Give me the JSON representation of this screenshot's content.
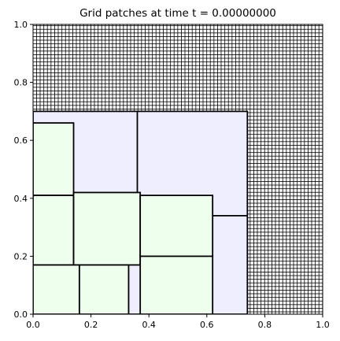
{
  "chart_data": {
    "type": "patch-grid",
    "title": "Grid patches at time t =     0.00000000",
    "xlim": [
      0,
      1
    ],
    "ylim": [
      0,
      1
    ],
    "xticks": [
      "0.0",
      "0.2",
      "0.4",
      "0.6",
      "0.8",
      "1.0"
    ],
    "yticks": [
      "0.0",
      "0.2",
      "0.4",
      "0.6",
      "0.8",
      "1.0"
    ],
    "xtick_values": [
      0,
      0.2,
      0.4,
      0.6,
      0.8,
      1.0
    ],
    "ytick_values": [
      0,
      0.2,
      0.4,
      0.6,
      0.8,
      1.0
    ],
    "colors": {
      "level1": "#ffffff",
      "level2": "#eeeeff",
      "level3": "#eeffee",
      "edge": "#000000"
    },
    "level1": {
      "fill_region": [
        0,
        0,
        1,
        1
      ],
      "cell_size": 0.0125
    },
    "level2_patches": [
      {
        "x0": 0.0,
        "y0": 0.0,
        "x1": 0.74,
        "y1": 0.7
      }
    ],
    "level2_edges": [
      {
        "x0": 0.36,
        "y0": 0.34,
        "x1": 0.36,
        "y1": 0.7
      },
      {
        "x0": 0.0,
        "y0": 0.34,
        "x1": 0.74,
        "y1": 0.34
      }
    ],
    "level3_patches": [
      {
        "x0": 0.0,
        "y0": 0.41,
        "x1": 0.14,
        "y1": 0.66
      },
      {
        "x0": 0.0,
        "y0": 0.17,
        "x1": 0.14,
        "y1": 0.41
      },
      {
        "x0": 0.14,
        "y0": 0.17,
        "x1": 0.37,
        "y1": 0.42
      },
      {
        "x0": 0.37,
        "y0": 0.2,
        "x1": 0.62,
        "y1": 0.41
      },
      {
        "x0": 0.37,
        "y0": 0.0,
        "x1": 0.62,
        "y1": 0.2
      },
      {
        "x0": 0.0,
        "y0": 0.0,
        "x1": 0.16,
        "y1": 0.17
      },
      {
        "x0": 0.16,
        "y0": 0.0,
        "x1": 0.33,
        "y1": 0.17
      }
    ]
  }
}
